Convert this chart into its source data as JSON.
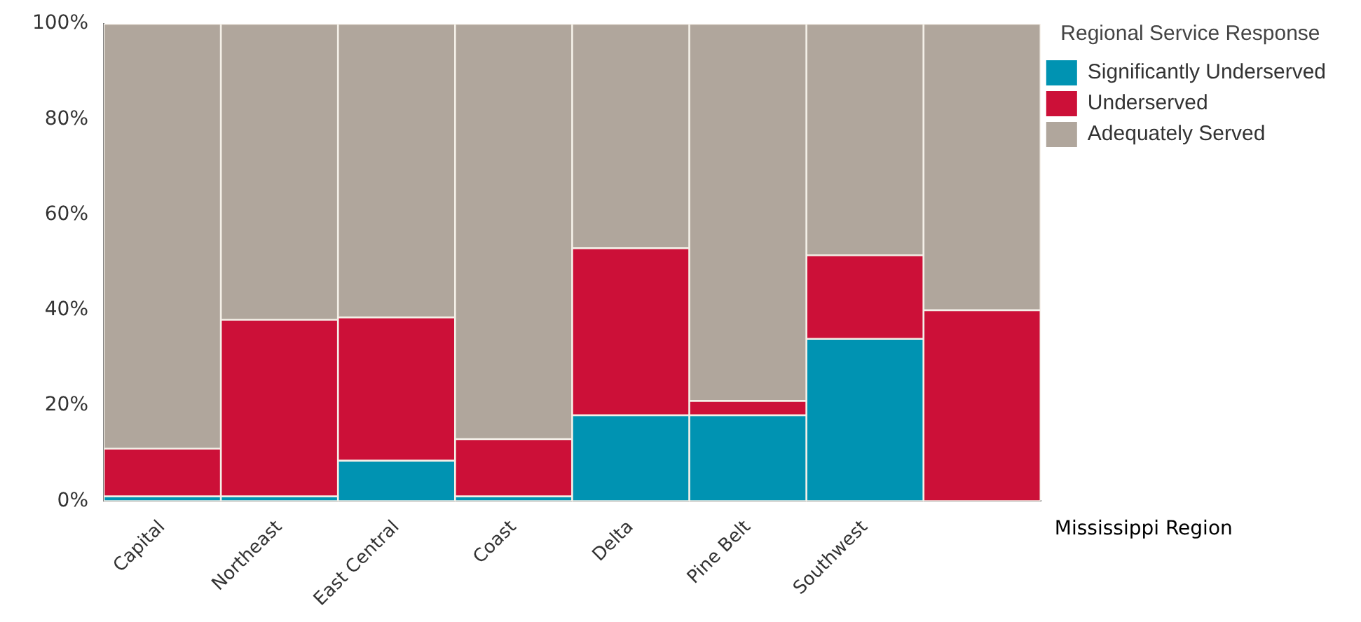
{
  "chart_data": {
    "type": "bar",
    "stacked": true,
    "xlabel": "Mississippi Region",
    "legend_title": "Regional Service Response",
    "legend": "top right",
    "grid": false,
    "categories": [
      "Capital",
      "Northeast",
      "East Central",
      "Coast",
      "Delta",
      "Pine Belt",
      "Southwest",
      null
    ],
    "ylim": [
      0,
      100
    ],
    "yticks": [
      {
        "value": 0,
        "label": "0%"
      },
      {
        "value": 20,
        "label": "20%"
      },
      {
        "value": 40,
        "label": "40%"
      },
      {
        "value": 60,
        "label": "60%"
      },
      {
        "value": 80,
        "label": "80%"
      },
      {
        "value": 100,
        "label": "100%"
      }
    ],
    "series": [
      {
        "name": "Significantly Underserved",
        "color": "#0093b2",
        "values": [
          1,
          1,
          8.5,
          1,
          18,
          18,
          34,
          0
        ]
      },
      {
        "name": "Underserved",
        "color": "#cc1038",
        "values": [
          10,
          37,
          30,
          12,
          35,
          3,
          17.5,
          40
        ]
      },
      {
        "name": "Adequately Served",
        "color": "#b0a69c",
        "values": [
          89,
          62,
          61.5,
          87,
          47,
          79,
          48.5,
          60
        ]
      }
    ]
  }
}
